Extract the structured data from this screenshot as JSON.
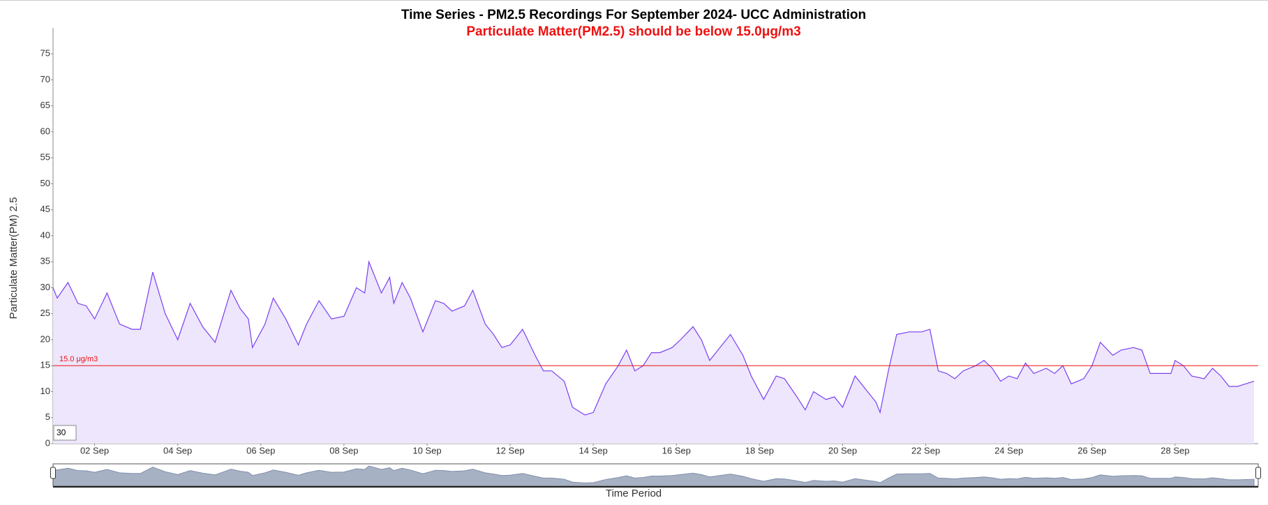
{
  "chart_data": {
    "type": "line",
    "title": "Time Series - PM2.5 Recordings For September 2024- UCC Administration",
    "subtitle": "Particulate Matter(PM2.5) should be below 15.0μg/m3",
    "y_label": "Particulate Matter(PM) 2.5",
    "x_label": "Time Period",
    "color": "#7b3ff2",
    "fill_color": "#ede6fc",
    "roll_period": 30,
    "threshold": {
      "value": 15,
      "label": "15.0 μg/m3"
    },
    "threshold_color": "#ee1111",
    "xlim": [
      1,
      30
    ],
    "ylim": [
      0,
      80
    ],
    "xticks": [
      {
        "value": 2,
        "label": "02 Sep"
      },
      {
        "value": 4,
        "label": "04 Sep"
      },
      {
        "value": 6,
        "label": "06 Sep"
      },
      {
        "value": 8,
        "label": "08 Sep"
      },
      {
        "value": 10,
        "label": "10 Sep"
      },
      {
        "value": 12,
        "label": "12 Sep"
      },
      {
        "value": 14,
        "label": "14 Sep"
      },
      {
        "value": 16,
        "label": "16 Sep"
      },
      {
        "value": 18,
        "label": "18 Sep"
      },
      {
        "value": 20,
        "label": "20 Sep"
      },
      {
        "value": 22,
        "label": "22 Sep"
      },
      {
        "value": 24,
        "label": "24 Sep"
      },
      {
        "value": 26,
        "label": "26 Sep"
      },
      {
        "value": 28,
        "label": "28 Sep"
      }
    ],
    "yticks": [
      0,
      5,
      10,
      15,
      20,
      25,
      30,
      35,
      40,
      45,
      50,
      55,
      60,
      65,
      70,
      75
    ],
    "x": [
      1.0,
      1.1,
      1.36,
      1.6,
      1.8,
      2.0,
      2.3,
      2.6,
      2.9,
      3.1,
      3.4,
      3.7,
      4.0,
      4.3,
      4.6,
      4.9,
      5.28,
      5.5,
      5.7,
      5.8,
      6.1,
      6.3,
      6.6,
      6.9,
      7.1,
      7.4,
      7.7,
      8.0,
      8.3,
      8.5,
      8.6,
      8.9,
      9.1,
      9.2,
      9.4,
      9.6,
      9.9,
      10.2,
      10.4,
      10.6,
      10.9,
      11.1,
      11.4,
      11.6,
      11.8,
      12.0,
      12.3,
      12.6,
      12.8,
      13.0,
      13.3,
      13.5,
      13.8,
      14.0,
      14.3,
      14.6,
      14.8,
      15.0,
      15.2,
      15.4,
      15.6,
      15.9,
      16.1,
      16.4,
      16.6,
      16.8,
      17.0,
      17.3,
      17.6,
      17.8,
      18.1,
      18.4,
      18.6,
      18.9,
      19.1,
      19.3,
      19.6,
      19.8,
      20.0,
      20.3,
      20.6,
      20.8,
      20.9,
      21.1,
      21.3,
      21.6,
      21.9,
      22.1,
      22.3,
      22.5,
      22.7,
      22.9,
      23.2,
      23.4,
      23.6,
      23.8,
      24.0,
      24.2,
      24.4,
      24.6,
      24.9,
      25.1,
      25.3,
      25.5,
      25.8,
      26.0,
      26.2,
      26.5,
      26.7,
      27.0,
      27.2,
      27.4,
      27.7,
      27.9,
      28.0,
      28.2,
      28.4,
      28.7,
      28.9,
      29.1,
      29.3,
      29.5,
      29.9
    ],
    "values": [
      30,
      28,
      31,
      27,
      26.5,
      24,
      29,
      23,
      22,
      22,
      33,
      25,
      20,
      27,
      22.5,
      19.5,
      29.5,
      26,
      24,
      18.5,
      23,
      28,
      24,
      19,
      23,
      27.5,
      24,
      24.5,
      30,
      29,
      35,
      29,
      32,
      27,
      31,
      28,
      21.5,
      27.5,
      27,
      25.5,
      26.5,
      29.5,
      23,
      21,
      18.5,
      19,
      22,
      17,
      14,
      14,
      12,
      7,
      5.5,
      6,
      11.5,
      15,
      18,
      14,
      15,
      17.5,
      17.5,
      18.5,
      20,
      22.5,
      20,
      16,
      18,
      21,
      17,
      13,
      8.5,
      13,
      12.5,
      9,
      6.5,
      10,
      8.5,
      9,
      7,
      13,
      10,
      8,
      6,
      14,
      21,
      21.5,
      21.5,
      22,
      14,
      13.5,
      12.5,
      14,
      15,
      16,
      14.5,
      12,
      13,
      12.5,
      15.5,
      13.5,
      14.5,
      13.5,
      15,
      11.5,
      12.5,
      15,
      19.5,
      17,
      18,
      18.5,
      18,
      13.5,
      13.5,
      13.5,
      16,
      15,
      13,
      12.5,
      14.5,
      13,
      11,
      11,
      12
    ]
  }
}
